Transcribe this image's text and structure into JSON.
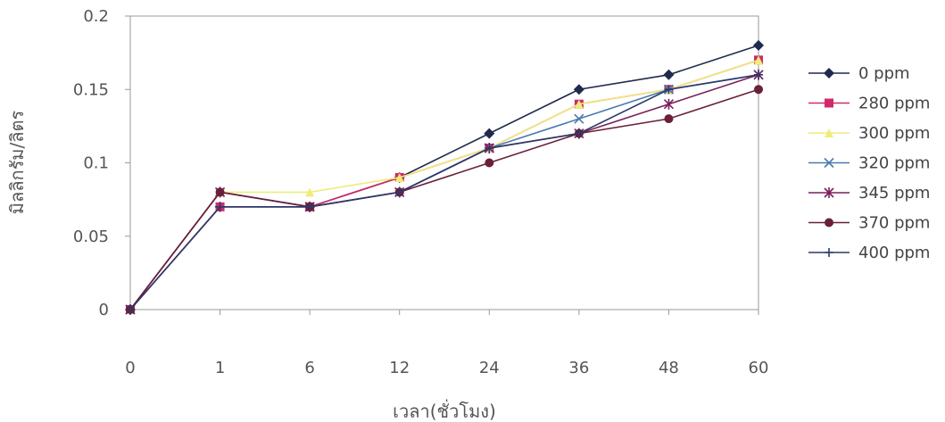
{
  "chart_data": {
    "type": "line",
    "title": "",
    "xlabel": "เวลา(ชั่วโมง)",
    "ylabel": "มิลลิกรัม/ลิตร",
    "categories": [
      "0",
      "1",
      "6",
      "12",
      "24",
      "36",
      "48",
      "60"
    ],
    "ylim": [
      0,
      0.2
    ],
    "yticks": [
      "0",
      "0.05",
      "0.1",
      "0.15",
      "0.2"
    ],
    "grid": false,
    "legend_position": "right",
    "series": [
      {
        "name": "0 ppm",
        "color": "#1f2a4d",
        "marker": "diamond",
        "values": [
          0,
          0.07,
          0.07,
          0.09,
          0.12,
          0.15,
          0.16,
          0.18
        ]
      },
      {
        "name": "280 ppm",
        "color": "#d02a6a",
        "marker": "square",
        "values": [
          0,
          0.07,
          0.07,
          0.09,
          0.11,
          0.14,
          0.15,
          0.17
        ]
      },
      {
        "name": "300 ppm",
        "color": "#f0ec7a",
        "marker": "triangle",
        "values": [
          0,
          0.08,
          0.08,
          0.09,
          0.11,
          0.14,
          0.15,
          0.17
        ]
      },
      {
        "name": "320 ppm",
        "color": "#4a7ab0",
        "marker": "x",
        "values": [
          0,
          0.08,
          0.07,
          0.08,
          0.11,
          0.13,
          0.15,
          0.16
        ]
      },
      {
        "name": "345 ppm",
        "color": "#7a1f5c",
        "marker": "asterisk",
        "values": [
          0,
          0.08,
          0.07,
          0.08,
          0.11,
          0.12,
          0.14,
          0.16
        ]
      },
      {
        "name": "370 ppm",
        "color": "#6a1f3a",
        "marker": "circle",
        "values": [
          0,
          0.08,
          0.07,
          0.08,
          0.1,
          0.12,
          0.13,
          0.15
        ]
      },
      {
        "name": "400 ppm",
        "color": "#2a3a6a",
        "marker": "plus",
        "values": [
          0,
          0.07,
          0.07,
          0.08,
          0.11,
          0.12,
          0.15,
          0.16
        ]
      }
    ]
  }
}
